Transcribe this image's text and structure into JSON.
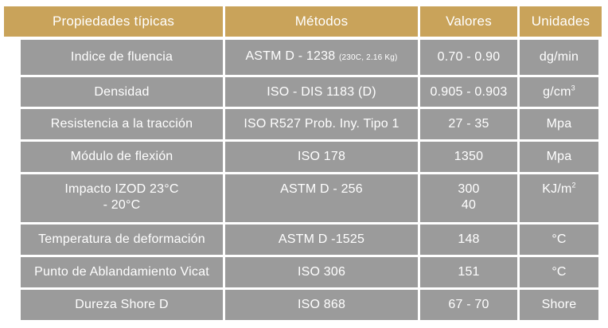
{
  "table": {
    "header": [
      "Propiedades típicas",
      "Métodos",
      "Valores",
      "Unidades"
    ],
    "rows": [
      [
        "Indice de fluencia",
        {
          "text": "ASTM D - 1238",
          "small": "(230C, 2.16 Kg)"
        },
        "0.70 - 0.90",
        "dg/min"
      ],
      [
        "Densidad",
        "ISO - DIS 1183 (D)",
        "0.905 - 0.903",
        {
          "text": "g/cm",
          "sup": "3"
        }
      ],
      [
        "Resistencia a la tracción",
        "ISO R527 Prob. Iny. Tipo 1",
        "27 - 35",
        "Mpa"
      ],
      [
        "Módulo de flexión",
        "ISO 178",
        "1350",
        "Mpa"
      ],
      [
        {
          "lines": [
            "Impacto IZOD 23°C",
            "- 20°C"
          ]
        },
        "ASTM D - 256",
        {
          "lines": [
            "300",
            "40"
          ]
        },
        {
          "text": "KJ/m",
          "sup": "2"
        }
      ],
      [
        "Temperatura de deformación",
        "ASTM D -1525",
        "148",
        "°C"
      ],
      [
        "Punto de Ablandamiento Vicat",
        "ISO 306",
        "151",
        "°C"
      ],
      [
        "Dureza Shore D",
        "ISO 868",
        "67 - 70",
        "Shore"
      ]
    ]
  }
}
